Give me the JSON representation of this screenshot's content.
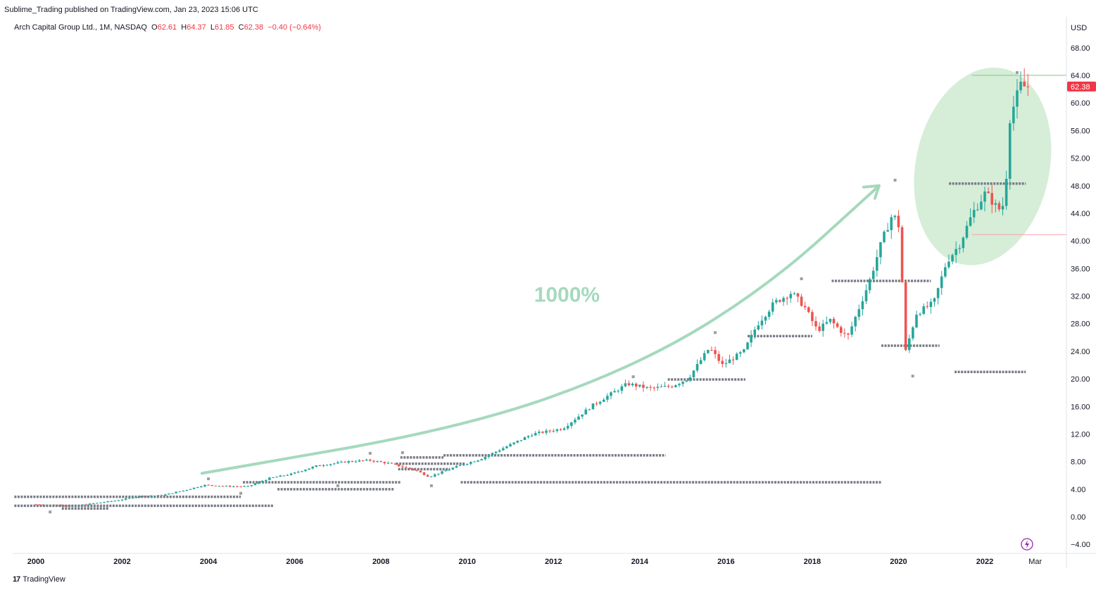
{
  "publish": {
    "text": "Sublime_Trading published on TradingView.com, Jan 23, 2023 15:06 UTC"
  },
  "legend": {
    "symbol": "Arch Capital Group Ltd., 1M, NASDAQ",
    "o_label": "O",
    "o_value": "62.61",
    "h_label": "H",
    "h_value": "64.37",
    "l_label": "L",
    "l_value": "61.85",
    "c_label": "C",
    "c_value": "62.38",
    "change": "−0.40 (−0.64%)"
  },
  "footer": {
    "brand": "TradingView",
    "logo_mark": "17"
  },
  "colors": {
    "up": "#26a69a",
    "down": "#ef5350",
    "pivot": "#787b86",
    "curve": "#a5d9bd",
    "annotation_text": "#a5d9bd",
    "ellipse_fill": "#a5d6a7",
    "price_label_bg": "#f23645",
    "flash": "#9c27b0",
    "green_line": "#81c784",
    "red_line": "#f7a1a8"
  },
  "chart_data": {
    "type": "candlestick",
    "title": "Arch Capital Group Ltd., 1M, NASDAQ",
    "currency": "USD",
    "y_ticks": [
      "68.00",
      "64.00",
      "60.00",
      "56.00",
      "52.00",
      "48.00",
      "44.00",
      "40.00",
      "36.00",
      "32.00",
      "28.00",
      "24.00",
      "20.00",
      "16.00",
      "12.00",
      "8.00",
      "4.00",
      "0.00",
      "−4.00"
    ],
    "y_range": [
      -4,
      68
    ],
    "x_ticks": [
      "2000",
      "2002",
      "2004",
      "2006",
      "2008",
      "2010",
      "2012",
      "2014",
      "2016",
      "2018",
      "2020",
      "2022",
      "Mar"
    ],
    "x_range": [
      1999.5,
      2023.17
    ],
    "last_price": 62.38,
    "last_price_label": "62.38",
    "annotation": "1000%",
    "trend_curve": [
      {
        "x": 2003.85,
        "y": 6.3
      },
      {
        "x": 2010.0,
        "y": 13.0
      },
      {
        "x": 2014.0,
        "y": 22.0
      },
      {
        "x": 2017.0,
        "y": 33.5
      },
      {
        "x": 2019.55,
        "y": 48.0
      }
    ],
    "highlight_ellipse": {
      "center_x": 2021.95,
      "center_y": 50.8,
      "radius_years": 1.55,
      "radius_price": 14.5
    },
    "resistance_line": {
      "from": 2021.7,
      "to": 2023.17,
      "price": 64.0
    },
    "support_line": {
      "from": 2021.7,
      "to": 2023.17,
      "price": 40.9
    },
    "pivot_levels": [
      {
        "from": 1999.5,
        "to": 2004.75,
        "price": 2.9
      },
      {
        "from": 1999.5,
        "to": 2005.5,
        "price": 1.6
      },
      {
        "from": 2000.6,
        "to": 2001.7,
        "price": 1.2
      },
      {
        "from": 2004.8,
        "to": 2008.45,
        "price": 5.0
      },
      {
        "from": 2005.6,
        "to": 2008.3,
        "price": 4.0
      },
      {
        "from": 2008.45,
        "to": 2009.45,
        "price": 8.6
      },
      {
        "from": 2008.35,
        "to": 2009.95,
        "price": 7.7
      },
      {
        "from": 2008.4,
        "to": 2009.6,
        "price": 6.9
      },
      {
        "from": 2009.45,
        "to": 2014.6,
        "price": 8.9
      },
      {
        "from": 2009.85,
        "to": 2019.6,
        "price": 5.0
      },
      {
        "from": 2014.65,
        "to": 2016.45,
        "price": 19.9
      },
      {
        "from": 2016.5,
        "to": 2018.0,
        "price": 26.2
      },
      {
        "from": 2018.45,
        "to": 2020.75,
        "price": 34.2
      },
      {
        "from": 2019.6,
        "to": 2020.95,
        "price": 24.8
      },
      {
        "from": 2021.17,
        "to": 2022.95,
        "price": 48.3
      },
      {
        "from": 2021.3,
        "to": 2022.95,
        "price": 21.0
      }
    ],
    "pivot_markers": [
      {
        "x": 2000.33,
        "price": 0.7
      },
      {
        "x": 2004.0,
        "price": 5.5
      },
      {
        "x": 2004.75,
        "price": 3.4
      },
      {
        "x": 2007.0,
        "price": 4.5
      },
      {
        "x": 2007.75,
        "price": 9.2
      },
      {
        "x": 2008.5,
        "price": 9.3
      },
      {
        "x": 2009.17,
        "price": 4.5
      },
      {
        "x": 2013.85,
        "price": 20.3
      },
      {
        "x": 2015.75,
        "price": 26.7
      },
      {
        "x": 2017.75,
        "price": 34.5
      },
      {
        "x": 2019.92,
        "price": 48.8
      },
      {
        "x": 2020.33,
        "price": 20.4
      },
      {
        "x": 2022.75,
        "price": 64.4
      }
    ],
    "ohlc_keypoints": [
      [
        2000.0,
        1.8
      ],
      [
        2001.0,
        1.6
      ],
      [
        2002.0,
        2.4
      ],
      [
        2002.5,
        3.0
      ],
      [
        2003.0,
        3.1
      ],
      [
        2003.5,
        3.8
      ],
      [
        2004.0,
        4.6
      ],
      [
        2004.6,
        4.4
      ],
      [
        2005.0,
        4.4
      ],
      [
        2005.5,
        5.6
      ],
      [
        2006.0,
        6.2
      ],
      [
        2006.6,
        7.4
      ],
      [
        2007.3,
        8.0
      ],
      [
        2007.8,
        8.2
      ],
      [
        2008.3,
        7.7
      ],
      [
        2008.9,
        6.7
      ],
      [
        2009.2,
        5.8
      ],
      [
        2009.8,
        7.2
      ],
      [
        2010.4,
        8.4
      ],
      [
        2011.0,
        10.2
      ],
      [
        2011.6,
        12.0
      ],
      [
        2012.3,
        12.8
      ],
      [
        2013.0,
        16.2
      ],
      [
        2013.8,
        19.3
      ],
      [
        2014.3,
        18.6
      ],
      [
        2014.8,
        18.9
      ],
      [
        2015.2,
        20.0
      ],
      [
        2015.7,
        24.5
      ],
      [
        2016.0,
        22.0
      ],
      [
        2016.5,
        24.0
      ],
      [
        2016.8,
        27.8
      ],
      [
        2017.2,
        31.0
      ],
      [
        2017.6,
        32.5
      ],
      [
        2017.9,
        30.5
      ],
      [
        2018.2,
        27.0
      ],
      [
        2018.5,
        28.5
      ],
      [
        2018.9,
        26.0
      ],
      [
        2019.4,
        34.0
      ],
      [
        2019.7,
        40.0
      ],
      [
        2019.95,
        44.0
      ],
      [
        2020.1,
        42.0
      ],
      [
        2020.25,
        24.0
      ],
      [
        2020.5,
        29.5
      ],
      [
        2020.9,
        31.0
      ],
      [
        2021.2,
        37.0
      ],
      [
        2021.5,
        39.5
      ],
      [
        2021.8,
        44.0
      ],
      [
        2022.1,
        47.0
      ],
      [
        2022.4,
        44.5
      ],
      [
        2022.55,
        45.5
      ],
      [
        2022.65,
        57.5
      ],
      [
        2022.8,
        60.5
      ],
      [
        2022.92,
        62.6
      ],
      [
        2023.0,
        62.38
      ]
    ]
  }
}
